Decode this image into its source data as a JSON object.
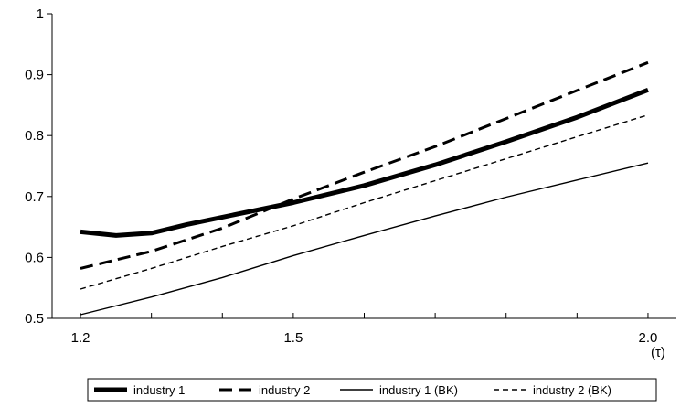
{
  "chart_data": {
    "type": "line",
    "x_tick_labels": [
      "1.2",
      "1.5",
      "2.0"
    ],
    "x_unit_label": "(τ)",
    "y_tick_labels": [
      "0.5",
      "0.6",
      "0.7",
      "0.8",
      "0.9",
      "1"
    ],
    "xlim": [
      1.16,
      2.04
    ],
    "ylim": [
      0.5,
      1.0
    ],
    "grid": false,
    "legend_position": "bottom",
    "series": [
      {
        "name": "industry 1",
        "style": "thick-solid",
        "points": [
          [
            1.2,
            0.642
          ],
          [
            1.25,
            0.636
          ],
          [
            1.3,
            0.64
          ],
          [
            1.35,
            0.654
          ],
          [
            1.4,
            0.666
          ],
          [
            1.5,
            0.69
          ],
          [
            1.6,
            0.718
          ],
          [
            1.7,
            0.752
          ],
          [
            1.8,
            0.79
          ],
          [
            1.9,
            0.83
          ],
          [
            2.0,
            0.875
          ]
        ]
      },
      {
        "name": "industry 2",
        "style": "thick-dashed",
        "points": [
          [
            1.2,
            0.582
          ],
          [
            1.3,
            0.61
          ],
          [
            1.4,
            0.648
          ],
          [
            1.5,
            0.696
          ],
          [
            1.6,
            0.74
          ],
          [
            1.7,
            0.782
          ],
          [
            1.8,
            0.828
          ],
          [
            1.9,
            0.874
          ],
          [
            2.0,
            0.92
          ]
        ]
      },
      {
        "name": "industry 1 (BK)",
        "style": "thin-solid",
        "points": [
          [
            1.2,
            0.506
          ],
          [
            1.3,
            0.535
          ],
          [
            1.4,
            0.567
          ],
          [
            1.5,
            0.603
          ],
          [
            1.6,
            0.636
          ],
          [
            1.7,
            0.668
          ],
          [
            1.8,
            0.699
          ],
          [
            1.9,
            0.727
          ],
          [
            2.0,
            0.755
          ]
        ]
      },
      {
        "name": "industry 2 (BK)",
        "style": "thin-dashed",
        "points": [
          [
            1.2,
            0.548
          ],
          [
            1.3,
            0.582
          ],
          [
            1.4,
            0.618
          ],
          [
            1.5,
            0.652
          ],
          [
            1.6,
            0.69
          ],
          [
            1.7,
            0.726
          ],
          [
            1.8,
            0.762
          ],
          [
            1.9,
            0.798
          ],
          [
            2.0,
            0.834
          ]
        ]
      }
    ]
  }
}
